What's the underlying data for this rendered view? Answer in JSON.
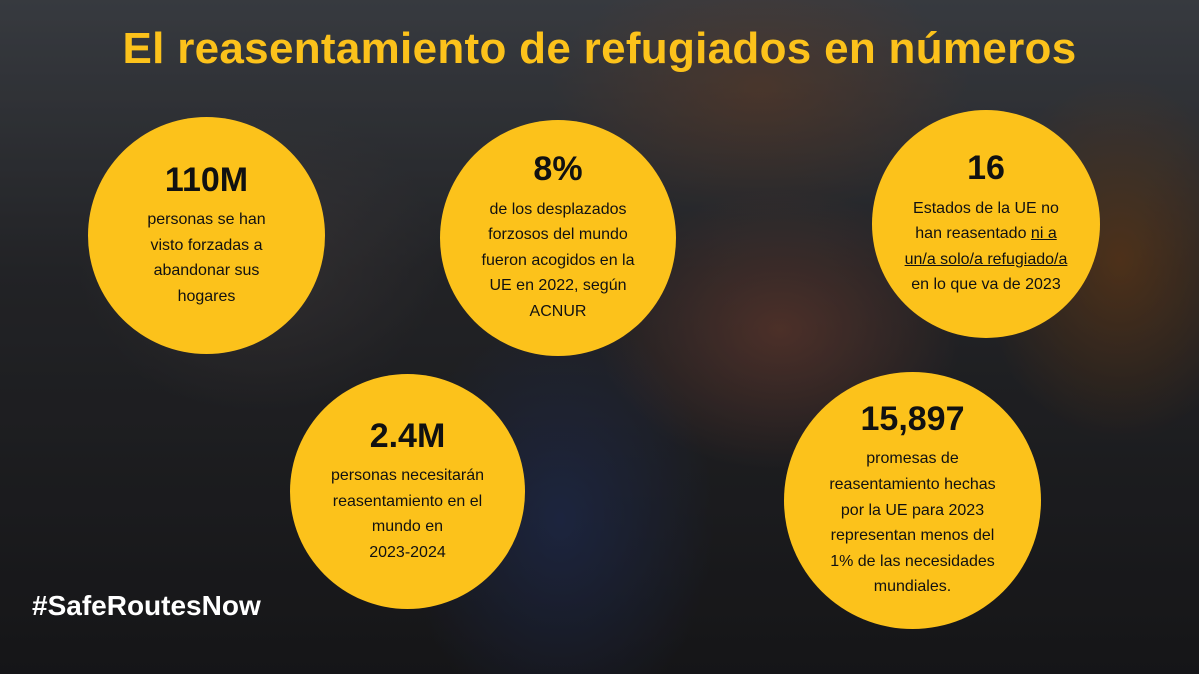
{
  "title": "El reasentamiento de refugiados en números",
  "stats": [
    {
      "number": "110M",
      "text": "personas se han\nvisto forzadas a\nabandonar sus\nhogares"
    },
    {
      "number": "8%",
      "text": "de los desplazados\nforzosos del mundo\nfueron acogidos en la\nUE en 2022, según\nACNUR"
    },
    {
      "number": "16",
      "text_before": "Estados de la UE no\nhan reasentado ",
      "text_underlined": "ni a\nun/a solo/a refugiado/a",
      "text_after": "\nen lo que va de 2023"
    },
    {
      "number": "2.4M",
      "text": "personas necesitarán\nreasentamiento en el\nmundo en\n2023-2024"
    },
    {
      "number": "15,897",
      "text": "promesas de\nreasentamiento hechas\npor la UE para 2023\nrepresentan menos del\n1% de las necesidades\nmundiales."
    }
  ],
  "hashtag": "#SafeRoutesNow",
  "colors": {
    "accent": "#fcc21b",
    "text_dark": "#111111",
    "text_light": "#ffffff"
  }
}
